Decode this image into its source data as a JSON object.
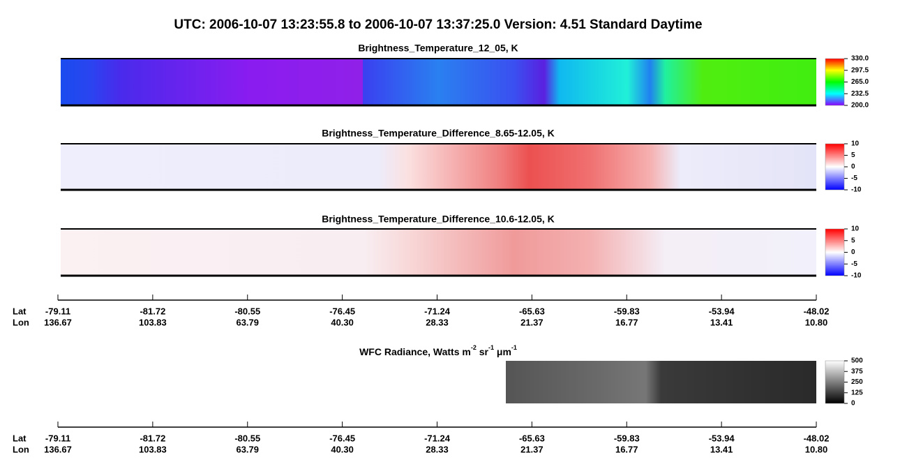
{
  "title": "UTC:  2006-10-07   13:23:55.8  to  2006-10-07   13:37:25.0    Version: 4.51  Standard Daytime",
  "panels": [
    {
      "title": "Brightness_Temperature_12_05, K",
      "colorbar_ticks": [
        "330.0",
        "297.5",
        "265.0",
        "232.5",
        "200.0"
      ]
    },
    {
      "title": "Brightness_Temperature_Difference_8.65-12.05, K",
      "colorbar_ticks": [
        "10",
        "5",
        "0",
        "-5",
        "-10"
      ]
    },
    {
      "title": "Brightness_Temperature_Difference_10.6-12.05, K",
      "colorbar_ticks": [
        "10",
        "5",
        "0",
        "-5",
        "-10"
      ]
    },
    {
      "title_parts": [
        "WFC Radiance, Watts m",
        "-2",
        " sr",
        "-1",
        " μm",
        "-1"
      ],
      "colorbar_ticks": [
        "500",
        "375",
        "250",
        "125",
        "0"
      ]
    }
  ],
  "axis": {
    "row_labels": [
      "Lat",
      "Lon"
    ],
    "lat": [
      "-79.11",
      "-81.72",
      "-80.55",
      "-76.45",
      "-71.24",
      "-65.63",
      "-59.83",
      "-53.94",
      "-48.02"
    ],
    "lon": [
      "136.67",
      "103.83",
      "63.79",
      "40.30",
      "28.33",
      "21.37",
      "16.77",
      "13.41",
      "10.80"
    ]
  }
}
